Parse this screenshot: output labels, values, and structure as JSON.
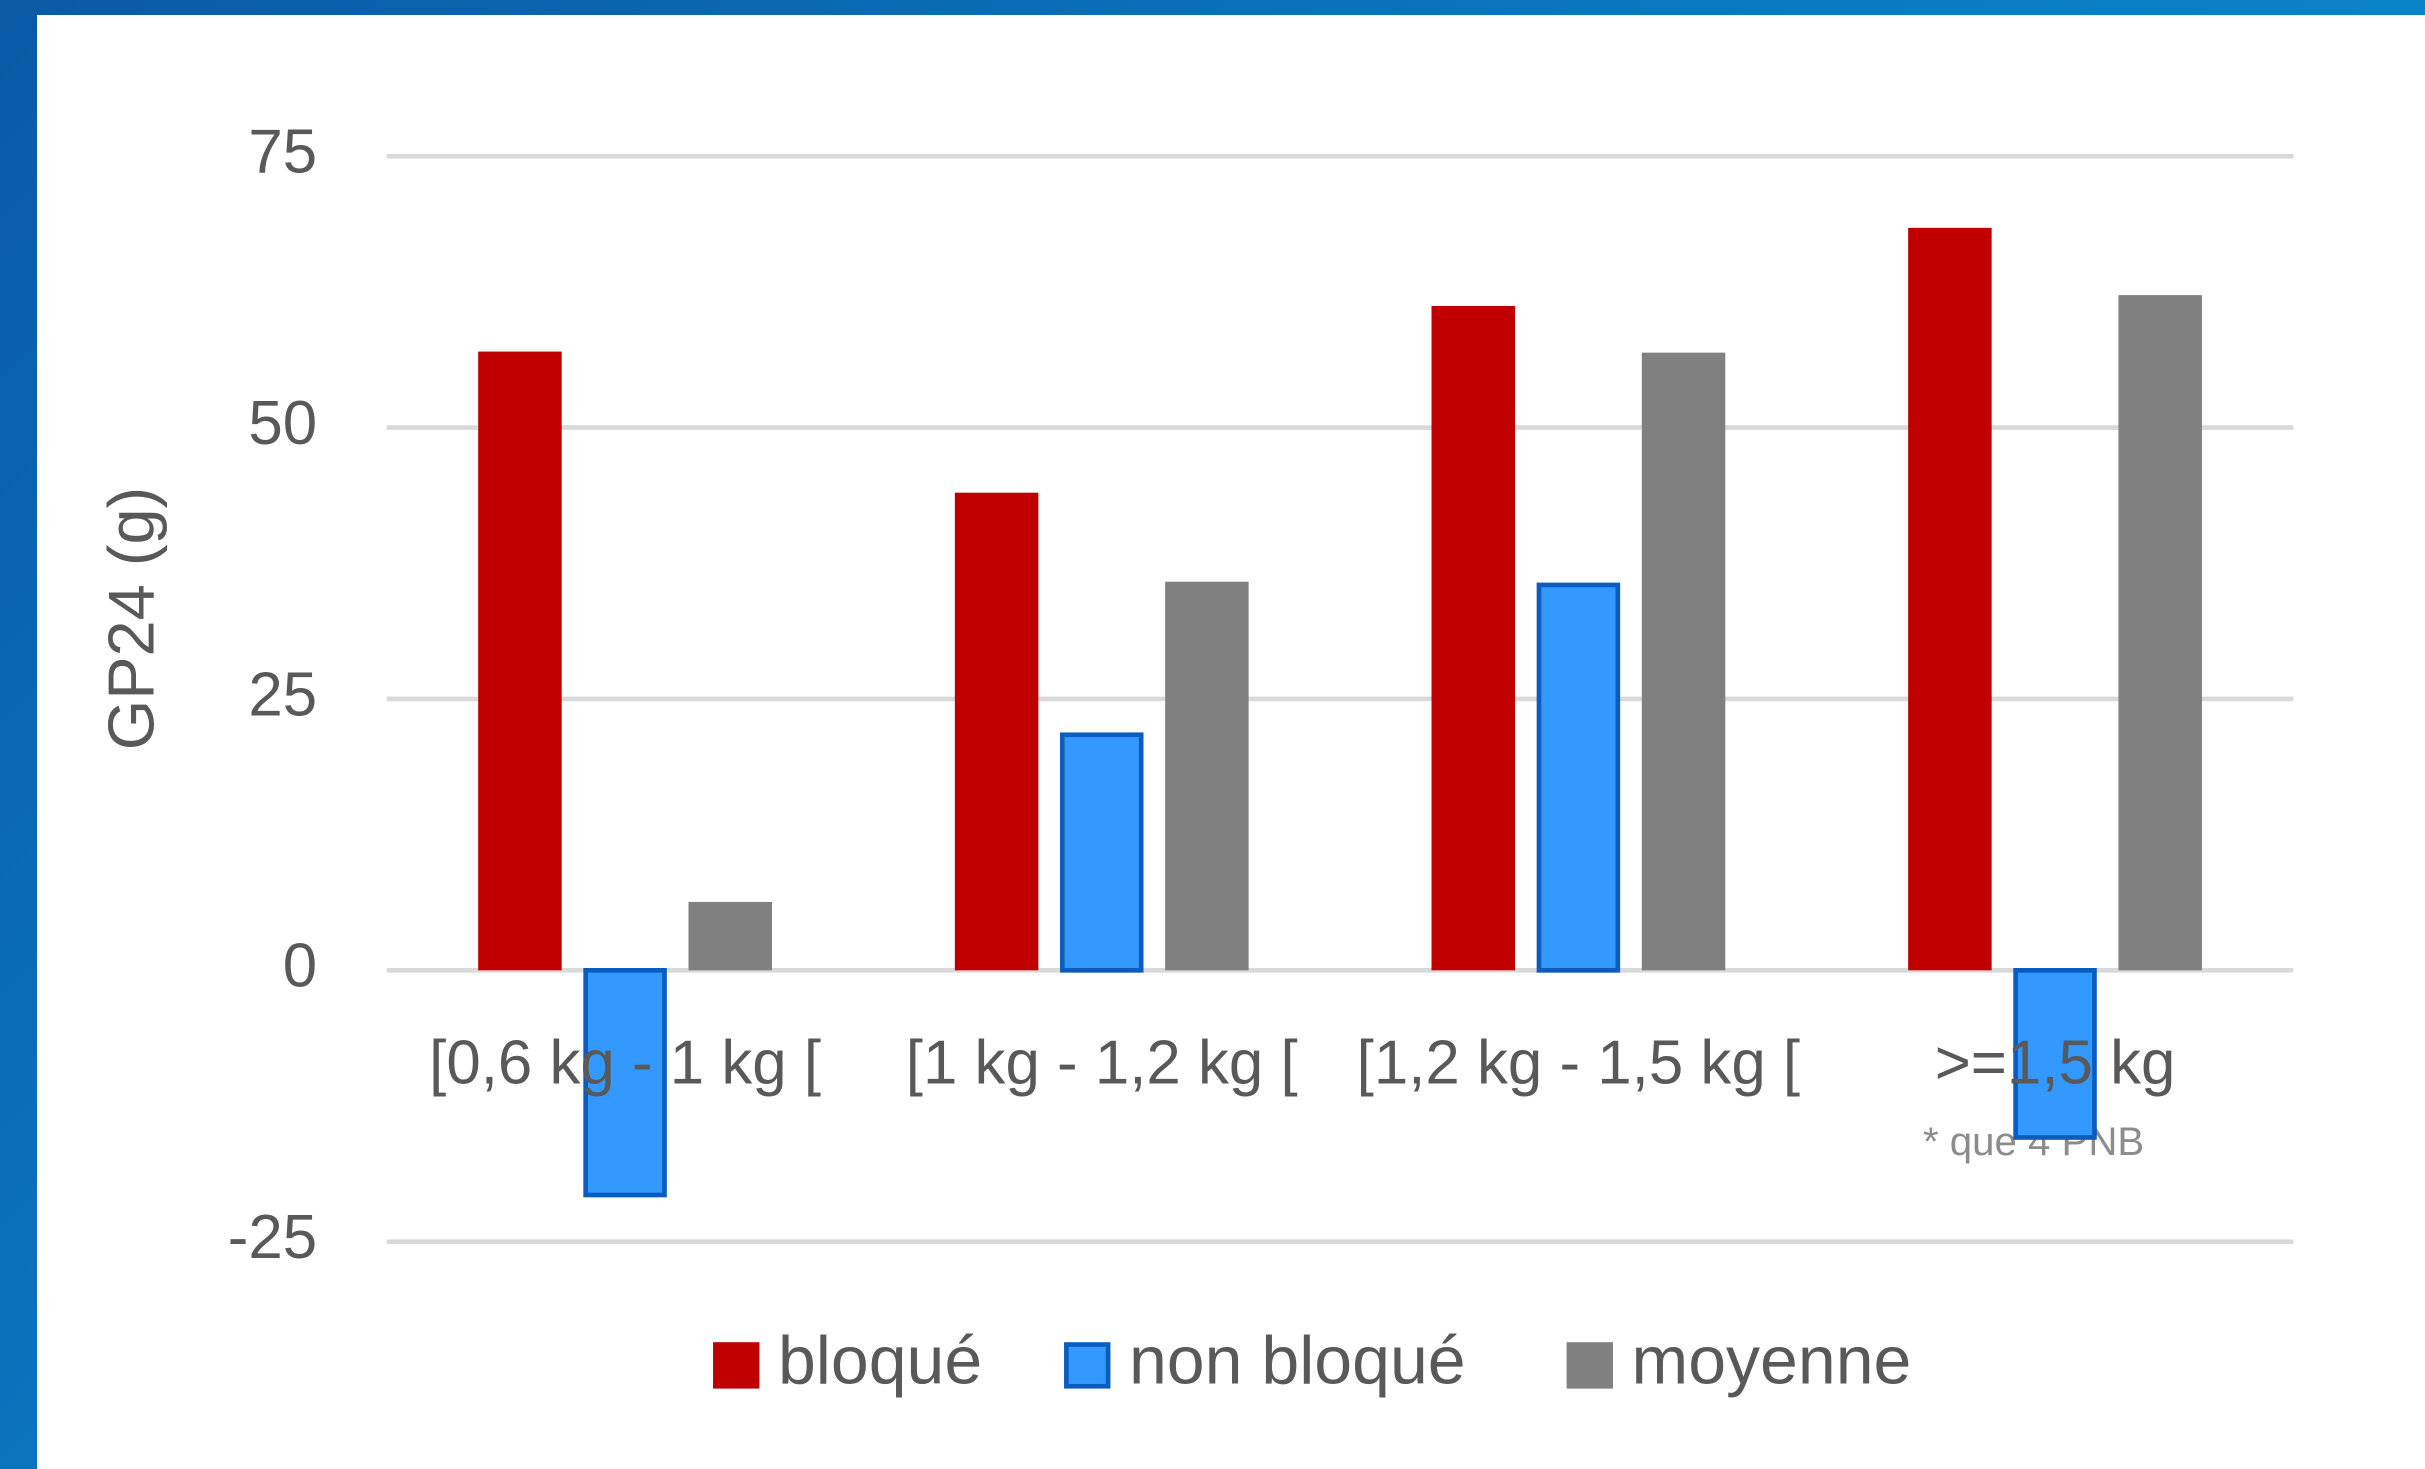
{
  "chart_data": {
    "type": "bar",
    "y_label": "GP24 (g)",
    "annotation": "* que 4 PNB",
    "categories": [
      "[0,6 kg - 1 kg [",
      "[1 kg - 1,2 kg [",
      "[1,2 kg - 1,5 kg [",
      ">=1,5 kg"
    ],
    "series": [
      {
        "name": "bloqué",
        "color": "#c00000",
        "values": [
          57,
          44,
          61.2,
          68.4
        ]
      },
      {
        "name": "non bloqué",
        "color": "#3399ff",
        "edgecolor": "#0a5cbf",
        "values": [
          -20.7,
          21.7,
          35.5,
          -15.4
        ]
      },
      {
        "name": "moyenne",
        "color": "#808080",
        "values": [
          6.3,
          35.8,
          56.9,
          62.2
        ]
      }
    ],
    "ylim": [
      -25,
      75
    ],
    "yticks": [
      -25,
      0,
      25,
      50,
      75
    ],
    "grid": true,
    "legend": "bottom"
  }
}
